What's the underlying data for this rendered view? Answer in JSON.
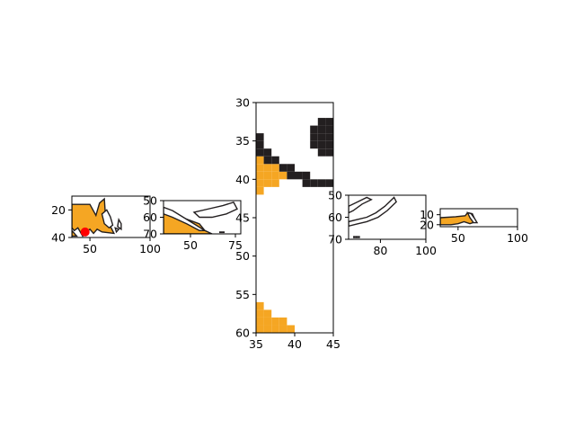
{
  "chart_data": [
    {
      "type": "heatmap",
      "description_free": true,
      "xlim": [
        35,
        100
      ],
      "ylim": [
        40,
        10
      ],
      "xticks": [
        50,
        100
      ],
      "yticks": [
        20,
        40
      ],
      "orange_regions": [
        [
          [
            35,
            16
          ],
          [
            50,
            16
          ],
          [
            55,
            24
          ],
          [
            58,
            15
          ],
          [
            62,
            12
          ],
          [
            63,
            25
          ],
          [
            70,
            37
          ],
          [
            60,
            36
          ],
          [
            56,
            34
          ],
          [
            53,
            37
          ],
          [
            50,
            34
          ],
          [
            44,
            39
          ],
          [
            40,
            33
          ],
          [
            37,
            35
          ],
          [
            35,
            33
          ]
        ],
        [
          [
            35,
            35
          ],
          [
            39,
            39
          ],
          [
            35,
            39
          ]
        ]
      ],
      "outline_regions": [
        [
          [
            60,
            23
          ],
          [
            64,
            20
          ],
          [
            67,
            25
          ],
          [
            69,
            31
          ],
          [
            66,
            33
          ],
          [
            62,
            30
          ]
        ],
        [
          [
            71,
            33
          ],
          [
            74,
            34
          ],
          [
            72,
            36
          ]
        ],
        [
          [
            74,
            27
          ],
          [
            76,
            30
          ],
          [
            76,
            34
          ],
          [
            73,
            32
          ]
        ]
      ],
      "markers": [
        {
          "x": 46,
          "y": 36,
          "color": "#ff0000"
        }
      ]
    },
    {
      "type": "heatmap",
      "xlim": [
        35,
        78
      ],
      "ylim": [
        70,
        50
      ],
      "xticks": [
        50,
        75
      ],
      "yticks": [
        50,
        60,
        70
      ],
      "orange_regions": [
        [
          [
            35,
            56
          ],
          [
            40,
            57
          ],
          [
            45,
            60
          ],
          [
            50,
            62
          ],
          [
            55,
            64
          ],
          [
            58,
            68
          ],
          [
            62,
            70
          ],
          [
            35,
            70
          ]
        ]
      ],
      "outline_regions": [
        [
          [
            52,
            57
          ],
          [
            60,
            55
          ],
          [
            68,
            53
          ],
          [
            74,
            51
          ],
          [
            76,
            55
          ],
          [
            70,
            58
          ],
          [
            62,
            60
          ],
          [
            55,
            60
          ]
        ],
        [
          [
            35,
            54
          ],
          [
            40,
            56
          ],
          [
            46,
            60
          ],
          [
            52,
            64
          ],
          [
            58,
            68
          ],
          [
            55,
            68
          ],
          [
            48,
            64
          ],
          [
            40,
            60
          ],
          [
            35,
            58
          ]
        ]
      ],
      "dark_cells": [
        {
          "x": 66,
          "y": 69
        },
        {
          "x": 67,
          "y": 69
        },
        {
          "x": 68,
          "y": 69
        }
      ]
    },
    {
      "type": "heatmap",
      "xlim": [
        35,
        45
      ],
      "ylim": [
        60,
        30
      ],
      "xticks": [
        35,
        40,
        45
      ],
      "yticks": [
        30,
        35,
        40,
        45,
        50,
        55,
        60
      ],
      "dark_cells": [
        [
          43,
          32.5
        ],
        [
          44,
          32.5
        ],
        [
          42,
          33.5
        ],
        [
          43,
          33.5
        ],
        [
          44,
          33.5
        ],
        [
          42,
          34.5
        ],
        [
          43,
          34.5
        ],
        [
          44,
          34.5
        ],
        [
          42,
          35.5
        ],
        [
          43,
          35.5
        ],
        [
          44,
          35.5
        ],
        [
          43,
          36.5
        ],
        [
          44,
          36.5
        ],
        [
          35,
          34.5
        ],
        [
          35,
          35.5
        ],
        [
          35,
          36.5
        ],
        [
          36,
          36.5
        ],
        [
          36,
          37.5
        ],
        [
          37,
          37.5
        ],
        [
          38,
          38.5
        ],
        [
          39,
          38.5
        ],
        [
          39,
          39.5
        ],
        [
          40,
          39.5
        ],
        [
          41,
          39.5
        ],
        [
          41,
          40.5
        ],
        [
          42,
          40.5
        ],
        [
          43,
          40.5
        ],
        [
          44,
          40.5
        ]
      ],
      "orange_cells": [
        [
          35,
          37.5
        ],
        [
          35,
          38.5
        ],
        [
          36,
          38.5
        ],
        [
          37,
          38.5
        ],
        [
          35,
          39.5
        ],
        [
          36,
          39.5
        ],
        [
          37,
          39.5
        ],
        [
          38,
          39.5
        ],
        [
          35,
          40.5
        ],
        [
          36,
          40.5
        ],
        [
          37,
          40.5
        ],
        [
          35,
          41.5
        ],
        [
          35,
          56.5
        ],
        [
          35,
          57.5
        ],
        [
          36,
          57.5
        ],
        [
          35,
          58.5
        ],
        [
          36,
          58.5
        ],
        [
          37,
          58.5
        ],
        [
          38,
          58.5
        ],
        [
          35,
          59.5
        ],
        [
          36,
          59.5
        ],
        [
          37,
          59.5
        ],
        [
          38,
          59.5
        ],
        [
          39,
          59.5
        ]
      ]
    },
    {
      "type": "heatmap",
      "xlim": [
        66,
        100
      ],
      "ylim": [
        70,
        50
      ],
      "xticks": [
        80,
        100
      ],
      "yticks": [
        50,
        60,
        70
      ],
      "outline_regions": [
        [
          [
            66,
            55
          ],
          [
            70,
            53
          ],
          [
            74,
            51
          ],
          [
            76,
            52
          ],
          [
            72,
            54
          ],
          [
            68,
            57
          ],
          [
            66,
            58
          ]
        ],
        [
          [
            66,
            62
          ],
          [
            70,
            61
          ],
          [
            74,
            60
          ],
          [
            78,
            58
          ],
          [
            82,
            55
          ],
          [
            86,
            51
          ],
          [
            87,
            53
          ],
          [
            83,
            57
          ],
          [
            79,
            60
          ],
          [
            74,
            62
          ],
          [
            70,
            63
          ],
          [
            66,
            64
          ]
        ]
      ],
      "dark_cells": [
        {
          "x": 68,
          "y": 69
        },
        {
          "x": 69,
          "y": 69
        },
        {
          "x": 70,
          "y": 69
        }
      ]
    },
    {
      "type": "heatmap",
      "xlim": [
        35,
        100
      ],
      "ylim": [
        22,
        4
      ],
      "xticks": [
        50,
        100
      ],
      "yticks": [
        10,
        20
      ],
      "orange_regions": [
        [
          [
            35,
            13
          ],
          [
            48,
            12
          ],
          [
            56,
            11
          ],
          [
            58,
            8
          ],
          [
            62,
            9
          ],
          [
            65,
            17
          ],
          [
            60,
            19
          ],
          [
            55,
            17
          ],
          [
            50,
            19
          ],
          [
            44,
            20
          ],
          [
            35,
            20
          ]
        ]
      ],
      "outline_regions": [
        [
          [
            58,
            8
          ],
          [
            61,
            9
          ],
          [
            64,
            14
          ],
          [
            66,
            18
          ],
          [
            63,
            18
          ],
          [
            60,
            13
          ]
        ]
      ]
    }
  ]
}
